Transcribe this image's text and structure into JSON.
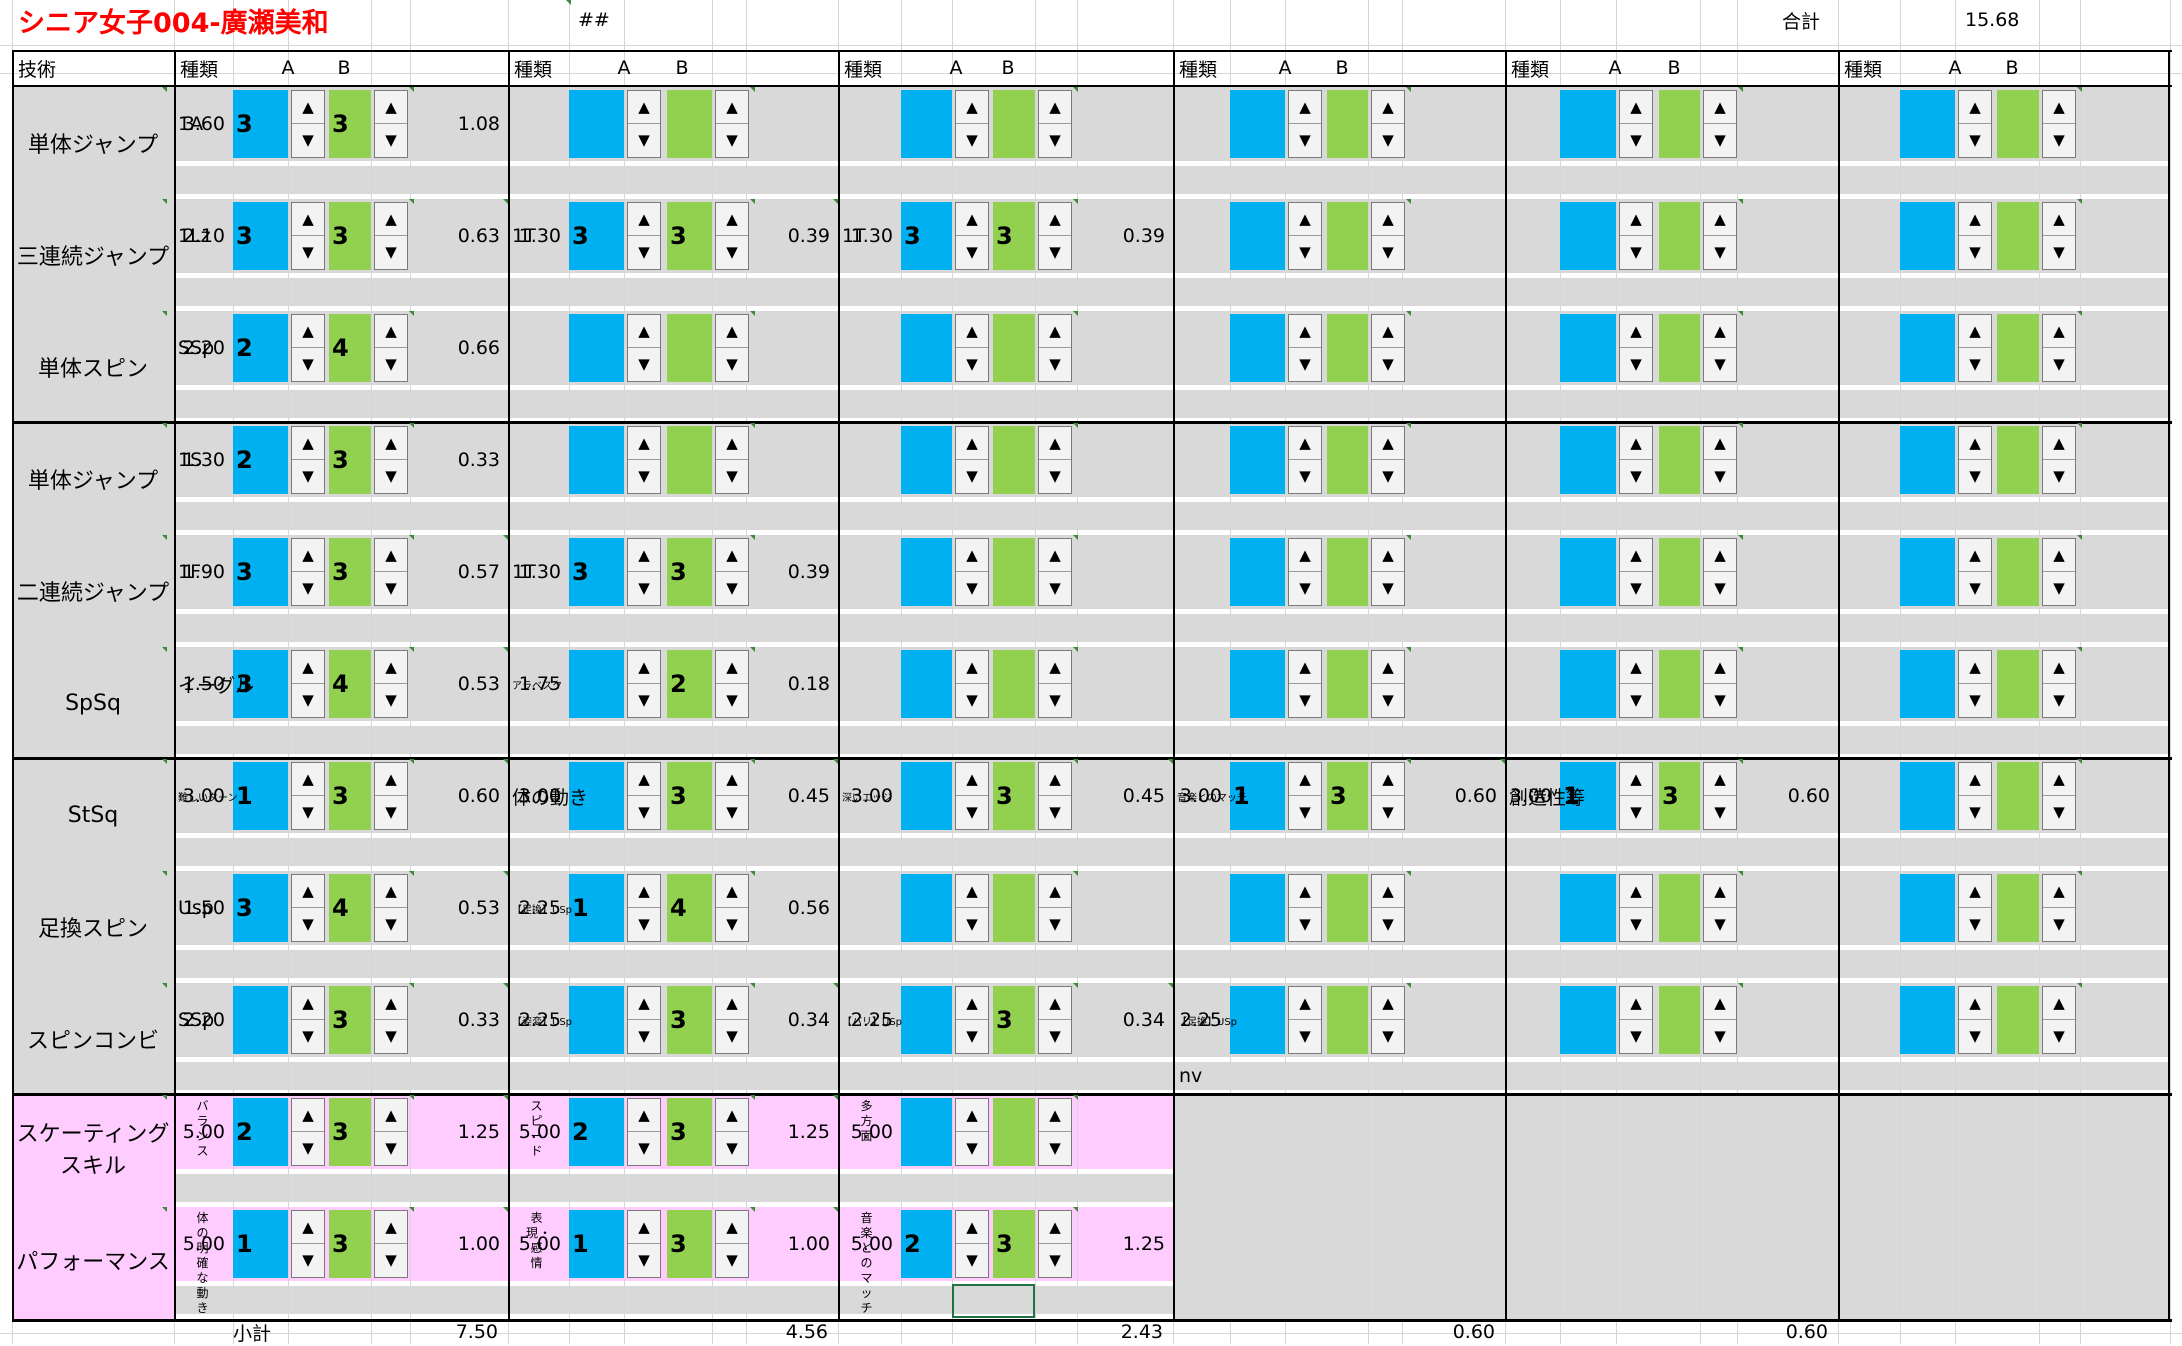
{
  "header": {
    "title": "シニア女子004-廣瀬美和",
    "hash": "##",
    "total_label": "合計",
    "total_value": "15.68"
  },
  "columns": {
    "technique": "技術",
    "kind": "種類",
    "a": "A",
    "b": "B"
  },
  "rows": [
    {
      "label": "単体ジャンプ",
      "entries": [
        {
          "kind": "1A",
          "base": "3.60",
          "a": "3",
          "b": "3",
          "goe": "1.08"
        },
        {},
        {},
        {},
        {},
        {}
      ]
    },
    {
      "label": "三連続ジャンプ",
      "entries": [
        {
          "kind": "1Lz",
          "base": "2.10",
          "a": "3",
          "b": "3",
          "goe": "0.63"
        },
        {
          "kind": "1T",
          "base": "1.30",
          "a": "3",
          "b": "3",
          "goe": "0.39"
        },
        {
          "kind": "1T",
          "base": "1.30",
          "a": "3",
          "b": "3",
          "goe": "0.39"
        },
        {},
        {},
        {}
      ]
    },
    {
      "label": "単体スピン",
      "entries": [
        {
          "kind": "SSp",
          "base": "2.20",
          "a": "2",
          "b": "4",
          "goe": "0.66"
        },
        {},
        {},
        {},
        {},
        {}
      ]
    },
    {
      "label": "単体ジャンプ",
      "entries": [
        {
          "kind": "1S",
          "base": "1.30",
          "a": "2",
          "b": "3",
          "goe": "0.33"
        },
        {},
        {},
        {},
        {},
        {}
      ]
    },
    {
      "label": "二連続ジャンプ",
      "entries": [
        {
          "kind": "1F",
          "base": "1.90",
          "a": "3",
          "b": "3",
          "goe": "0.57"
        },
        {
          "kind": "1T",
          "base": "1.30",
          "a": "3",
          "b": "3",
          "goe": "0.39"
        },
        {},
        {},
        {},
        {}
      ]
    },
    {
      "label": "SpSq",
      "entries": [
        {
          "kind": "イーグル",
          "base": "1.50",
          "a": "3",
          "b": "4",
          "goe": "0.53"
        },
        {
          "kind": "アラベスク",
          "base": "1.75",
          "b": "2",
          "goe": "0.18"
        },
        {},
        {},
        {},
        {}
      ]
    },
    {
      "label": "StSq",
      "entries": [
        {
          "kind": "難しいターン",
          "base": "3.00",
          "a": "1",
          "b": "3",
          "goe": "0.60"
        },
        {
          "kind": "体の動き",
          "base": "3.00",
          "b": "3",
          "goe": "0.45"
        },
        {
          "kind": "深いエッジ",
          "base": "3.00",
          "b": "3",
          "goe": "0.45"
        },
        {
          "kind": "音楽とのマッチ",
          "base": "3.00",
          "a": "1",
          "b": "3",
          "goe": "0.60"
        },
        {
          "kind": "創造性等",
          "base": "3.00",
          "a": "1",
          "b": "3",
          "goe": "0.60"
        },
        {}
      ]
    },
    {
      "label": "足換スピン",
      "entries": [
        {
          "kind": "Usp",
          "base": "1.50",
          "a": "3",
          "b": "4",
          "goe": "0.53"
        },
        {
          "kind": "【足換】USp",
          "base": "2.25",
          "a": "1",
          "b": "4",
          "goe": "0.56"
        },
        {},
        {},
        {},
        {}
      ]
    },
    {
      "label": "スピンコンビ",
      "entries": [
        {
          "kind": "SSp",
          "base": "2.20",
          "b": "3",
          "goe": "0.33"
        },
        {
          "kind": "【姿変】USp",
          "base": "2.25",
          "b": "3",
          "goe": "0.34"
        },
        {
          "kind": "【バリ】USp",
          "base": "2.25",
          "b": "3",
          "goe": "0.34"
        },
        {
          "kind": "【足換】USp",
          "base": "2.25",
          "sub": "nv"
        },
        {},
        {}
      ]
    }
  ],
  "pink_rows": [
    {
      "label": "スケーティングスキル",
      "entries": [
        {
          "kind": "バランス",
          "base": "5.00",
          "a": "2",
          "b": "3",
          "goe": "1.25"
        },
        {
          "kind": "スピード",
          "base": "5.00",
          "a": "2",
          "b": "3",
          "goe": "1.25"
        },
        {
          "kind": "多方面",
          "base": "5.00"
        }
      ]
    },
    {
      "label": "パフォーマンス",
      "entries": [
        {
          "kind": "体の明確な動き",
          "base": "5.00",
          "a": "1",
          "b": "3",
          "goe": "1.00"
        },
        {
          "kind": "表現・感情",
          "base": "5.00",
          "a": "1",
          "b": "3",
          "goe": "1.00"
        },
        {
          "kind": "音楽とのマッチ",
          "base": "5.00",
          "a": "2",
          "b": "3",
          "goe": "1.25"
        }
      ]
    }
  ],
  "footer": {
    "subtotal_label": "小計",
    "subtotals": [
      "7.50",
      "4.56",
      "2.43",
      "0.60",
      "0.60"
    ]
  },
  "icons": {
    "up": "▲",
    "down": "▼"
  },
  "colors": {
    "accent_a": "#00b0f0",
    "accent_b": "#92d050",
    "row_gray": "#d9d9d9",
    "pink": "#ffccff",
    "title_red": "#ff0000"
  }
}
